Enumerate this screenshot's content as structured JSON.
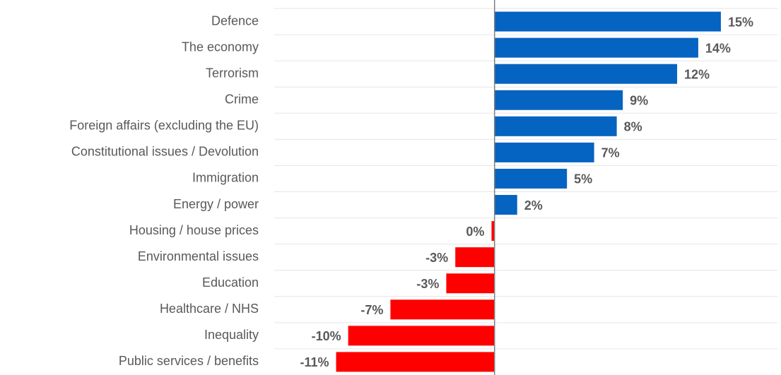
{
  "chart_data": {
    "type": "bar",
    "orientation": "horizontal",
    "categories": [
      "Defence",
      "The economy",
      "Terrorism",
      "Crime",
      "Foreign affairs (excluding the EU)",
      "Constitutional issues / Devolution",
      "Immigration",
      "Energy / power",
      "Housing / house prices",
      "Environmental issues",
      "Education",
      "Healthcare / NHS",
      "Inequality",
      "Public services / benefits"
    ],
    "values": [
      15,
      13.5,
      12.1,
      8.5,
      8.1,
      6.6,
      4.8,
      1.5,
      -0.2,
      -2.6,
      -3.2,
      -6.9,
      -9.7,
      -10.5
    ],
    "value_labels": [
      "15%",
      "14%",
      "12%",
      "9%",
      "8%",
      "7%",
      "5%",
      "2%",
      "0%",
      "-3%",
      "-3%",
      "-7%",
      "-10%",
      "-11%"
    ],
    "color_positive": "#0563c1",
    "color_negative": "#ff0000",
    "xlim": [
      -14.6,
      18.75
    ],
    "grid": true
  }
}
